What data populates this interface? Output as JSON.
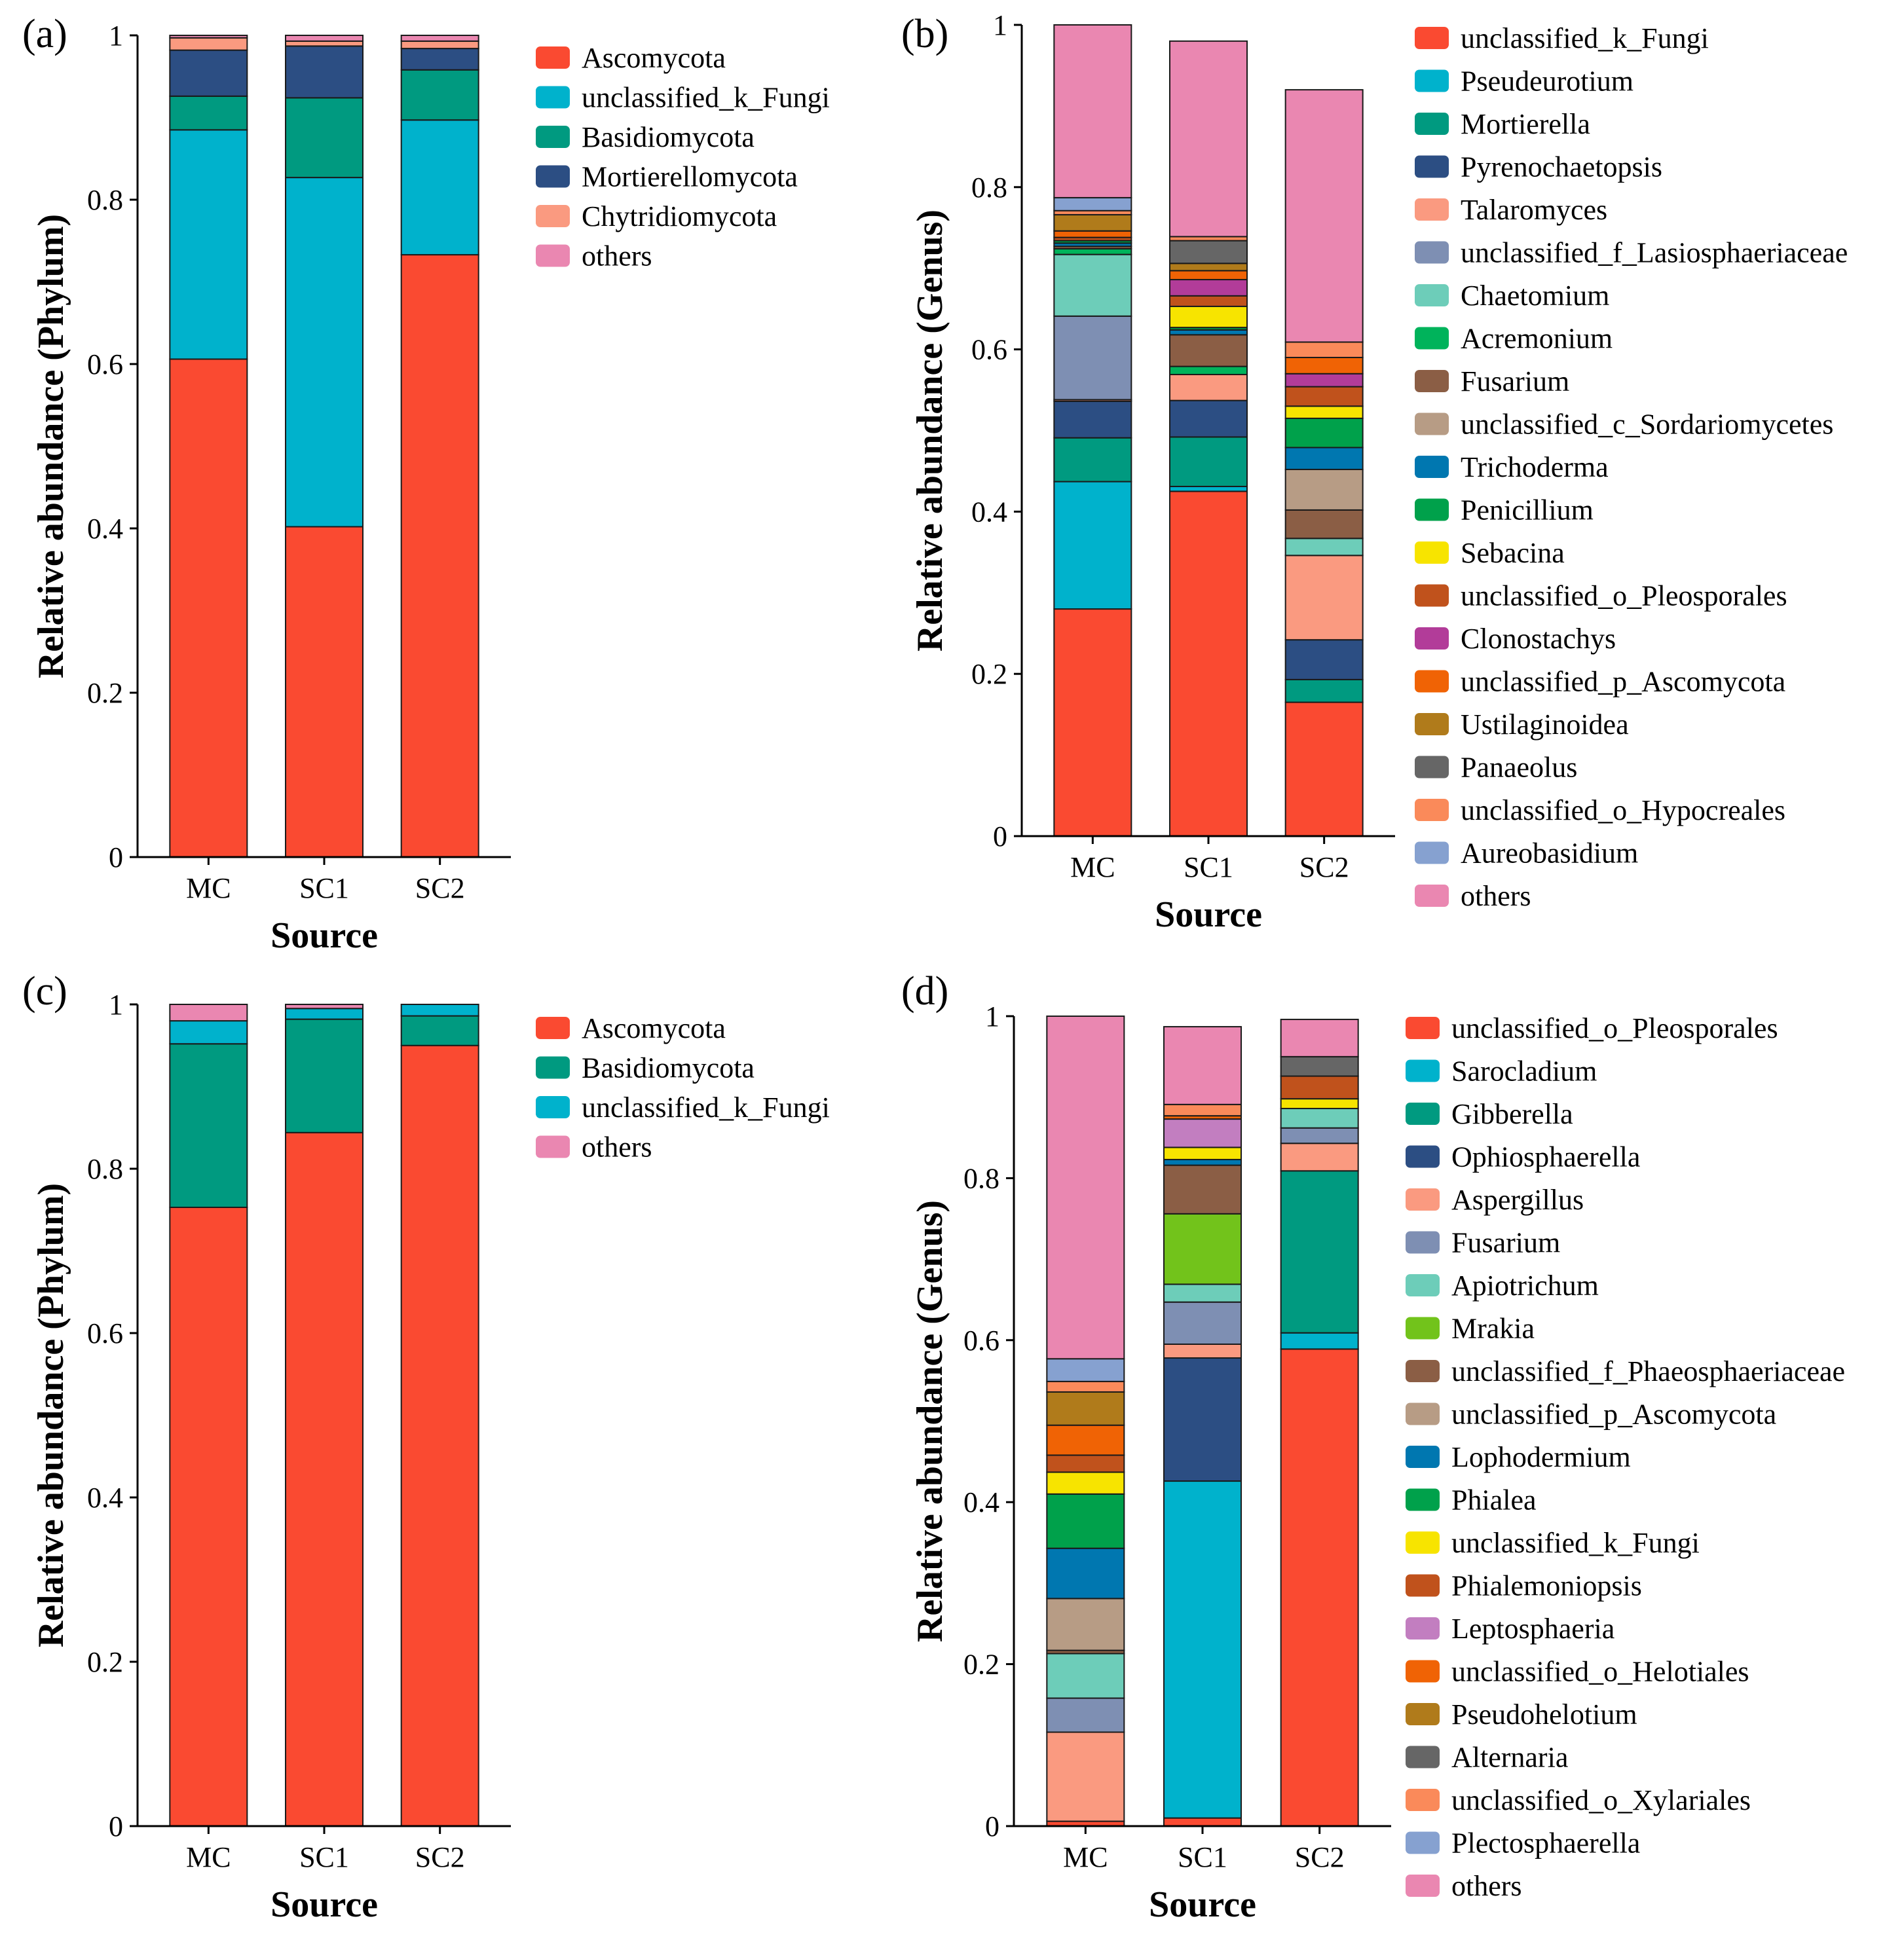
{
  "chart_data": [
    {
      "panel": "(a)",
      "type": "bar",
      "stacked": true,
      "title": "",
      "xlabel": "Source",
      "ylabel": "Relative abundance (Phylum)",
      "ylim": [
        0,
        1
      ],
      "yticks": [
        "0",
        "0.2",
        "0.4",
        "0.6",
        "0.8",
        "1"
      ],
      "categories": [
        "MC",
        "SC1",
        "SC2"
      ],
      "series": [
        {
          "name": "Ascomycota",
          "color": "#FA4A31",
          "values": [
            0.606,
            0.402,
            0.733
          ]
        },
        {
          "name": "unclassified_k_Fungi",
          "color": "#00B2CC",
          "values": [
            0.279,
            0.425,
            0.164
          ]
        },
        {
          "name": "Basidiomycota",
          "color": "#009A80",
          "values": [
            0.041,
            0.097,
            0.061
          ]
        },
        {
          "name": "Mortierellomycota",
          "color": "#2C4E83",
          "values": [
            0.056,
            0.063,
            0.026
          ]
        },
        {
          "name": "Chytridiomycota",
          "color": "#FA9A80",
          "values": [
            0.015,
            0.006,
            0.009
          ]
        },
        {
          "name": "others",
          "color": "#EA87B1",
          "values": [
            0.003,
            0.007,
            0.007
          ]
        }
      ]
    },
    {
      "panel": "(b)",
      "type": "bar",
      "stacked": true,
      "title": "",
      "xlabel": "Source",
      "ylabel": "Relative abundance (Genus)",
      "ylim": [
        0,
        1
      ],
      "yticks": [
        "0",
        "0.2",
        "0.4",
        "0.6",
        "0.8",
        "1"
      ],
      "categories": [
        "MC",
        "SC1",
        "SC2"
      ],
      "series": [
        {
          "name": "unclassified_k_Fungi",
          "color": "#FA4A31",
          "values": [
            0.28,
            0.425,
            0.165
          ]
        },
        {
          "name": "Pseudeurotium",
          "color": "#00B2CC",
          "values": [
            0.157,
            0.006,
            0.0
          ]
        },
        {
          "name": "Mortierella",
          "color": "#009A80",
          "values": [
            0.054,
            0.061,
            0.028
          ]
        },
        {
          "name": "Pyrenochaetopsis",
          "color": "#2C4E83",
          "values": [
            0.045,
            0.045,
            0.049
          ]
        },
        {
          "name": "Talaromyces",
          "color": "#FA9A80",
          "values": [
            0.002,
            0.032,
            0.104
          ]
        },
        {
          "name": "unclassified_f_Lasiosphaeriaceae",
          "color": "#7E8FB3",
          "values": [
            0.103,
            0.0,
            0.0
          ]
        },
        {
          "name": "Chaetomium",
          "color": "#6DCDB9",
          "values": [
            0.076,
            0.0,
            0.021
          ]
        },
        {
          "name": "Acremonium",
          "color": "#00B35B",
          "values": [
            0.007,
            0.01,
            0.0
          ]
        },
        {
          "name": "Fusarium",
          "color": "#8B5E45",
          "values": [
            0.003,
            0.039,
            0.035
          ]
        },
        {
          "name": "unclassified_c_Sordariomycetes",
          "color": "#B79C85",
          "values": [
            0.0,
            0.0,
            0.05
          ]
        },
        {
          "name": "Trichoderma",
          "color": "#0077B0",
          "values": [
            0.004,
            0.006,
            0.027
          ]
        },
        {
          "name": "Penicillium",
          "color": "#00A14B",
          "values": [
            0.003,
            0.003,
            0.036
          ]
        },
        {
          "name": "Sebacina",
          "color": "#F7E400",
          "values": [
            0.0,
            0.026,
            0.015
          ]
        },
        {
          "name": "unclassified_o_Pleosporales",
          "color": "#C0521C",
          "values": [
            0.004,
            0.013,
            0.024
          ]
        },
        {
          "name": "Clonostachys",
          "color": "#B23C99",
          "values": [
            0.0,
            0.02,
            0.016
          ]
        },
        {
          "name": "unclassified_p_Ascomycota",
          "color": "#F06305",
          "values": [
            0.008,
            0.011,
            0.02
          ]
        },
        {
          "name": "Ustilaginoidea",
          "color": "#B07B1B",
          "values": [
            0.02,
            0.009,
            0.0
          ]
        },
        {
          "name": "Panaeolus",
          "color": "#666666",
          "values": [
            0.0,
            0.028,
            0.0
          ]
        },
        {
          "name": "unclassified_o_Hypocreales",
          "color": "#FA8A5A",
          "values": [
            0.005,
            0.005,
            0.019
          ]
        },
        {
          "name": "Aureobasidium",
          "color": "#86A1D0",
          "values": [
            0.016,
            0.0,
            0.0
          ]
        },
        {
          "name": "others",
          "color": "#EA87B1",
          "values": [
            0.213,
            0.241,
            0.311
          ]
        }
      ]
    },
    {
      "panel": "(c)",
      "type": "bar",
      "stacked": true,
      "title": "",
      "xlabel": "Source",
      "ylabel": "Relative abundance (Phylum)",
      "ylim": [
        0,
        1
      ],
      "yticks": [
        "0",
        "0.2",
        "0.4",
        "0.6",
        "0.8",
        "1"
      ],
      "categories": [
        "MC",
        "SC1",
        "SC2"
      ],
      "series": [
        {
          "name": "Ascomycota",
          "color": "#FA4A31",
          "values": [
            0.753,
            0.844,
            0.95
          ]
        },
        {
          "name": "Basidiomycota",
          "color": "#009A80",
          "values": [
            0.199,
            0.138,
            0.036
          ]
        },
        {
          "name": "unclassified_k_Fungi",
          "color": "#00B2CC",
          "values": [
            0.028,
            0.013,
            0.014
          ]
        },
        {
          "name": "others",
          "color": "#EA87B1",
          "values": [
            0.02,
            0.005,
            0.0
          ]
        }
      ]
    },
    {
      "panel": "(d)",
      "type": "bar",
      "stacked": true,
      "title": "",
      "xlabel": "Source",
      "ylabel": "Relative abundance (Genus)",
      "ylim": [
        0,
        1
      ],
      "yticks": [
        "0",
        "0.2",
        "0.4",
        "0.6",
        "0.8",
        "1"
      ],
      "categories": [
        "MC",
        "SC1",
        "SC2"
      ],
      "series": [
        {
          "name": "unclassified_o_Pleosporales",
          "color": "#FA4A31",
          "values": [
            0.006,
            0.01,
            0.589
          ]
        },
        {
          "name": "Sarocladium",
          "color": "#00B2CC",
          "values": [
            0.0,
            0.416,
            0.02
          ]
        },
        {
          "name": "Gibberella",
          "color": "#009A80",
          "values": [
            0.0,
            0.0,
            0.2
          ]
        },
        {
          "name": "Ophiosphaerella",
          "color": "#2C4E83",
          "values": [
            0.0,
            0.152,
            0.0
          ]
        },
        {
          "name": "Aspergillus",
          "color": "#FA9A80",
          "values": [
            0.11,
            0.017,
            0.034
          ]
        },
        {
          "name": "Fusarium",
          "color": "#7E8FB3",
          "values": [
            0.042,
            0.052,
            0.019
          ]
        },
        {
          "name": "Apiotrichum",
          "color": "#6DCDB9",
          "values": [
            0.055,
            0.022,
            0.024
          ]
        },
        {
          "name": "Mrakia",
          "color": "#72C31B",
          "values": [
            0.0,
            0.087,
            0.0
          ]
        },
        {
          "name": "unclassified_f_Phaeosphaeriaceae",
          "color": "#8B5E45",
          "values": [
            0.004,
            0.06,
            0.0
          ]
        },
        {
          "name": "unclassified_p_Ascomycota",
          "color": "#B79C85",
          "values": [
            0.064,
            0.0,
            0.0
          ]
        },
        {
          "name": "Lophodermium",
          "color": "#0077B0",
          "values": [
            0.062,
            0.007,
            0.0
          ]
        },
        {
          "name": "Phialea",
          "color": "#00A14B",
          "values": [
            0.067,
            0.0,
            0.0
          ]
        },
        {
          "name": "unclassified_k_Fungi",
          "color": "#F7E400",
          "values": [
            0.027,
            0.015,
            0.012
          ]
        },
        {
          "name": "Phialemoniopsis",
          "color": "#C0521C",
          "values": [
            0.021,
            0.0,
            0.028
          ]
        },
        {
          "name": "Leptosphaeria",
          "color": "#C27EC0",
          "values": [
            0.0,
            0.035,
            0.0
          ]
        },
        {
          "name": "unclassified_o_Helotiales",
          "color": "#F06305",
          "values": [
            0.037,
            0.004,
            0.0
          ]
        },
        {
          "name": "Pseudohelotium",
          "color": "#B07B1B",
          "values": [
            0.041,
            0.0,
            0.0
          ]
        },
        {
          "name": "Alternaria",
          "color": "#666666",
          "values": [
            0.0,
            0.0,
            0.024
          ]
        },
        {
          "name": "unclassified_o_Xylariales",
          "color": "#FA8A5A",
          "values": [
            0.013,
            0.014,
            0.0
          ]
        },
        {
          "name": "Plectosphaerella",
          "color": "#86A1D0",
          "values": [
            0.028,
            0.0,
            0.0
          ]
        },
        {
          "name": "others",
          "color": "#EA87B1",
          "values": [
            0.423,
            0.096,
            0.046
          ]
        }
      ]
    }
  ]
}
